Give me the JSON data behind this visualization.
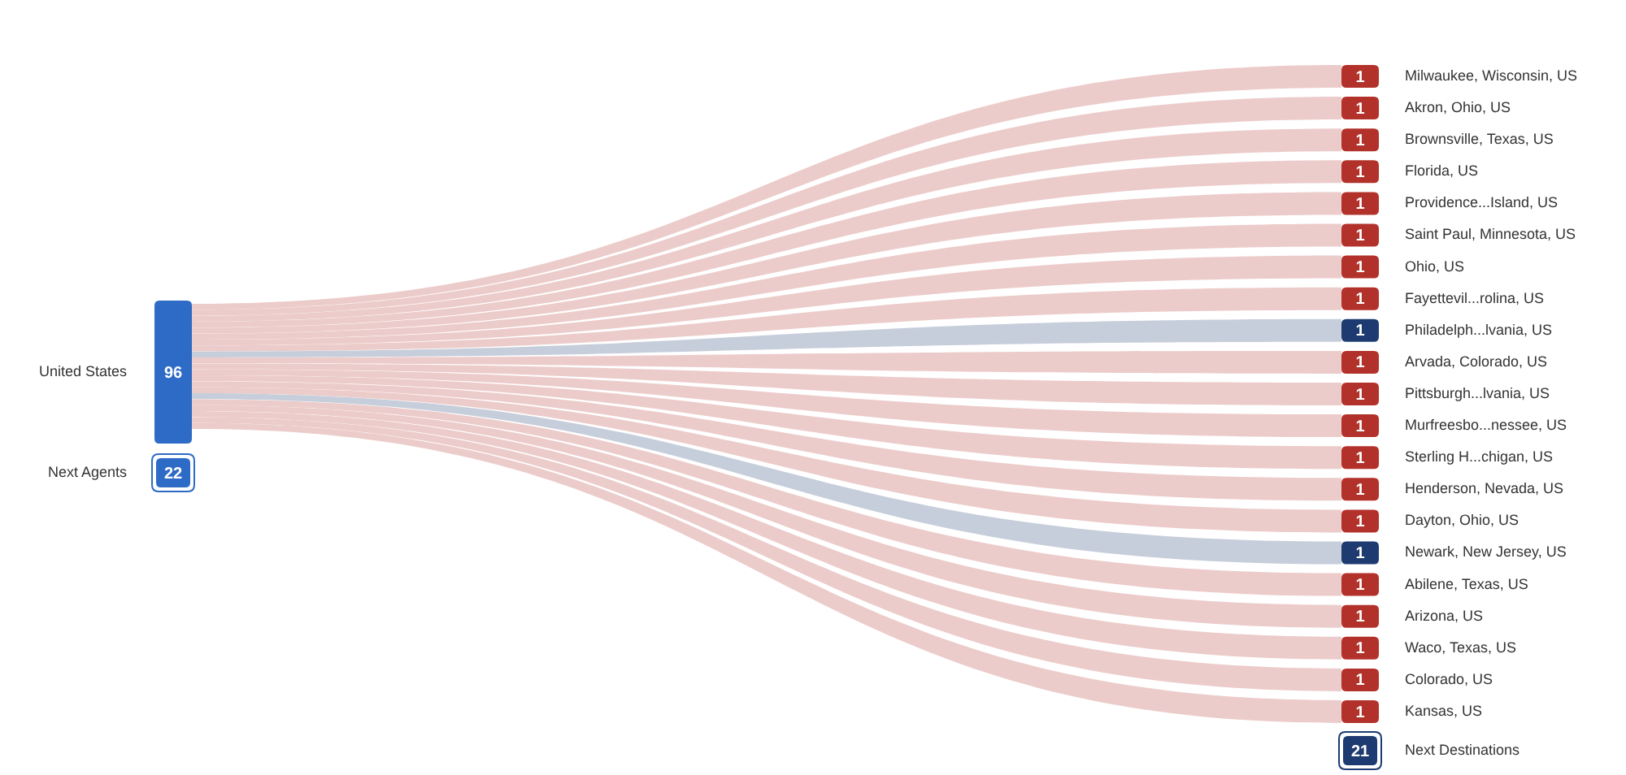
{
  "chart_data": {
    "type": "other",
    "categories": [
      "United States",
      "Next Agents",
      "Milwaukee, Wisconsin, US",
      "Akron, Ohio, US",
      "Brownsville, Texas, US",
      "Florida, US",
      "Providence...Island, US",
      "Saint Paul, Minnesota, US",
      "Ohio, US",
      "Fayettevil...rolina, US",
      "Philadelph...lvania, US",
      "Arvada, Colorado, US",
      "Pittsburgh...lvania, US",
      "Murfreesbo...nessee, US",
      "Sterling H...chigan, US",
      "Henderson, Nevada, US",
      "Dayton, Ohio, US",
      "Newark, New Jersey, US",
      "Abilene, Texas, US",
      "Arizona, US",
      "Waco, Texas, US",
      "Colorado, US",
      "Kansas, US",
      "Next Destinations"
    ],
    "series": [
      {
        "values": [
          96,
          null,
          null,
          null,
          null,
          null,
          null,
          null,
          null,
          null,
          null,
          null,
          null,
          null,
          null,
          null,
          null,
          null,
          null,
          null,
          null,
          null,
          null,
          null
        ],
        "colors": [
          "#2e6bc6",
          null,
          null,
          null,
          null,
          null,
          null,
          null,
          null,
          null,
          null,
          null,
          null,
          null,
          null,
          null,
          null,
          null,
          null,
          null,
          null,
          null,
          null,
          null
        ]
      },
      {
        "values": [
          null,
          null,
          1,
          1,
          1,
          1,
          1,
          1,
          1,
          1,
          1,
          1,
          1,
          1,
          1,
          1,
          1,
          1,
          1,
          1,
          1,
          1,
          1,
          null
        ],
        "colors": [
          null,
          null,
          "#b3312b",
          "#b3312b",
          "#b3312b",
          "#b3312b",
          "#b3312b",
          "#b3312b",
          "#b3312b",
          "#b3312b",
          "#1d3b70",
          "#b3312b",
          "#b3312b",
          "#b3312b",
          "#b3312b",
          "#b3312b",
          "#b3312b",
          "#1d3b70",
          "#b3312b",
          "#b3312b",
          "#b3312b",
          "#b3312b",
          "#b3312b",
          null
        ]
      },
      {
        "values": [
          null,
          22,
          null,
          null,
          null,
          null,
          null,
          null,
          null,
          null,
          null,
          null,
          null,
          null,
          null,
          null,
          null,
          null,
          null,
          null,
          null,
          null,
          null,
          21
        ],
        "colors": [
          null,
          "#2e6bc6",
          null,
          null,
          null,
          null,
          null,
          null,
          null,
          null,
          null,
          null,
          null,
          null,
          null,
          null,
          null,
          null,
          null,
          null,
          null,
          null,
          null,
          "#1d3b70"
        ]
      }
    ],
    "data_labels": true
  }
}
